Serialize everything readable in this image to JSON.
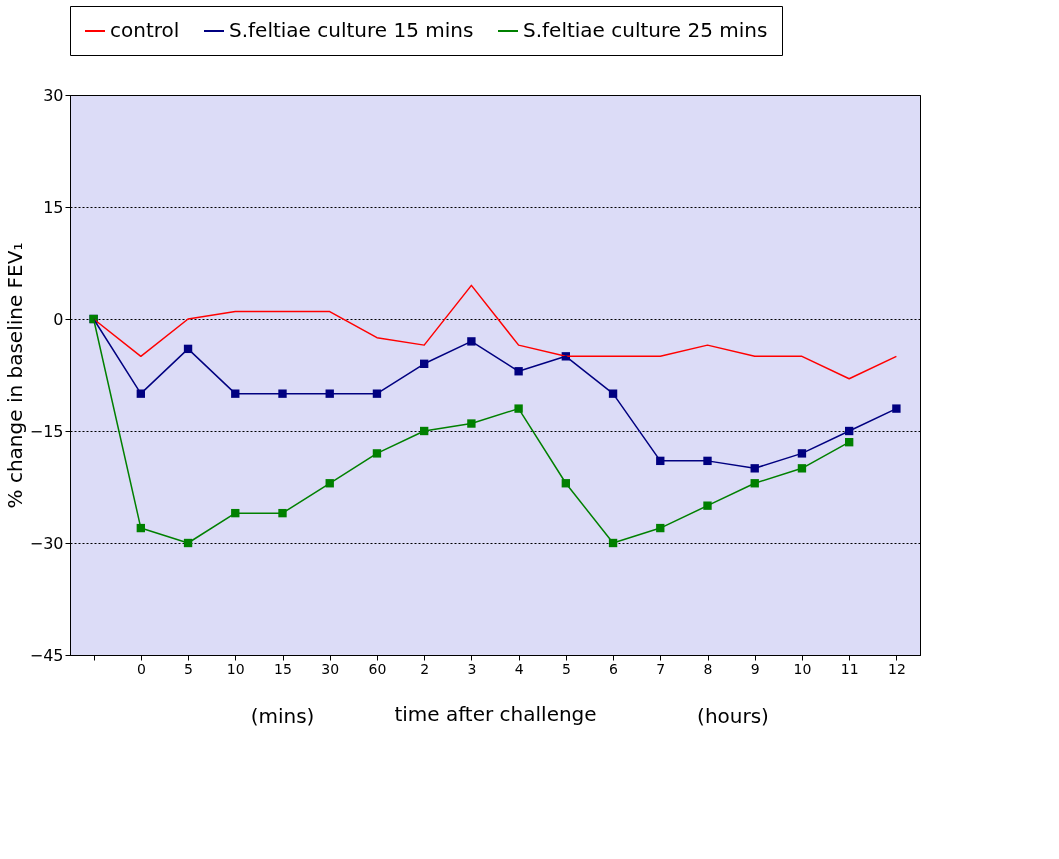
{
  "chart_data": {
    "type": "line",
    "xlabel": "time after challenge",
    "ylabel": "% change in baseline FEV₁",
    "categories": [
      null,
      "0",
      "5",
      "10",
      "15",
      "30",
      "60",
      "2",
      "3",
      "4",
      "5",
      "6",
      "7",
      "8",
      "9",
      "10",
      "11",
      "12"
    ],
    "series": [
      {
        "name": "control",
        "color": "#ff0000",
        "marker": "none",
        "values": [
          0,
          -5,
          0,
          1,
          1,
          1,
          -2.5,
          -3.5,
          4.5,
          -3.5,
          -5,
          -5,
          -5,
          -3.5,
          -5,
          -5,
          -8,
          -5
        ]
      },
      {
        "name": "S.feltiae culture 15 mins",
        "color": "#000080",
        "marker": "square",
        "values": [
          0,
          -10,
          -4,
          -10,
          -10,
          -10,
          -10,
          -6,
          -3,
          -7,
          -5,
          -10,
          -19,
          -19,
          -20,
          -18,
          -15,
          -12
        ]
      },
      {
        "name": "S.feltiae culture 25 mins",
        "color": "#008000",
        "marker": "square",
        "values": [
          0,
          -28,
          -30,
          -26,
          -26,
          -22,
          -18,
          -15,
          -14,
          -12,
          -22,
          -30,
          -28,
          -25,
          -22,
          -20,
          -16.5,
          null
        ]
      }
    ],
    "ylim": [
      -45,
      30
    ],
    "yticks": [
      -45,
      -30,
      -15,
      0,
      15,
      30
    ],
    "grid": "y",
    "legend": "top",
    "line_style": "solid",
    "annotations": [
      "(mins)",
      "(hours)"
    ]
  }
}
